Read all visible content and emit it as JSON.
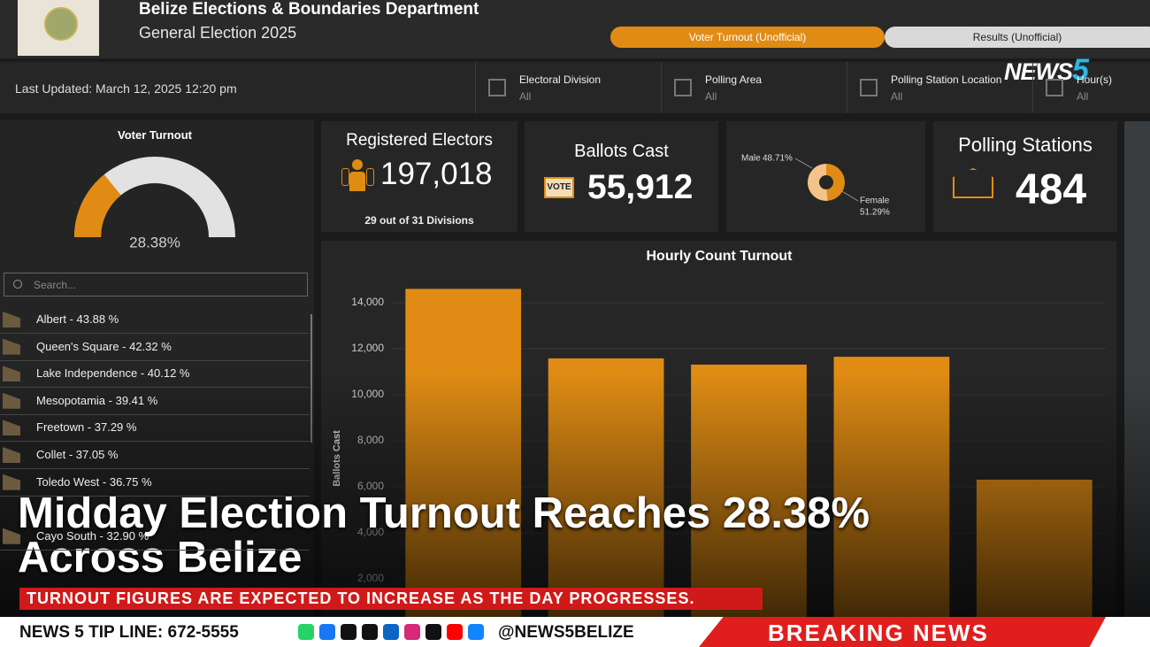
{
  "header": {
    "title": "Belize Elections & Boundaries Department",
    "subtitle": "General Election 2025"
  },
  "tabs": [
    "Voter Turnout (Unofficial)",
    "Results (Unofficial)"
  ],
  "last_updated": "Last Updated: March 12, 2025 12:20 pm",
  "filters": [
    {
      "label": "Electoral Division",
      "value": "All"
    },
    {
      "label": "Polling Area",
      "value": "All"
    },
    {
      "label": "Polling Station Location",
      "value": "All"
    },
    {
      "label": "Hour(s)",
      "value": "All"
    }
  ],
  "logo": {
    "text": "NEWS",
    "number": "5"
  },
  "search_placeholder": "Search...",
  "divisions": [
    "Albert - 43.88 %",
    "Queen's Square - 42.32 %",
    "Lake Independence - 40.12 %",
    "Mesopotamia - 39.41 %",
    "Freetown - 37.29 %",
    "Collet - 37.05 %",
    "Toledo West - 36.75 %",
    "Cayo South - 32.90 %"
  ],
  "cards": {
    "registered": {
      "title": "Registered Electors",
      "value": "197,018",
      "note": "29 out of 31 Divisions"
    },
    "ballots": {
      "title": "Ballots Cast",
      "value": "55,912",
      "icon": "VOTE"
    },
    "stations": {
      "title": "Polling Stations",
      "value": "484"
    }
  },
  "chart_data": [
    {
      "type": "gauge",
      "title": "Voter Turnout",
      "values": [
        28.38
      ],
      "value_labels": [
        "28.38%"
      ],
      "ylim": [
        0,
        100
      ],
      "color": "#e08c14"
    },
    {
      "type": "pie",
      "categories": [
        "Male",
        "Female"
      ],
      "values": [
        48.71,
        51.29
      ],
      "value_labels": [
        "48.71%",
        "51.29%"
      ],
      "colors": [
        "#e08c14",
        "#f5c28a"
      ]
    },
    {
      "type": "bar",
      "title": "Hourly Count Turnout",
      "y_label": "Ballots Cast",
      "categories": [
        null,
        null,
        null,
        null,
        null
      ],
      "values": [
        14600,
        11580,
        11310,
        11650,
        6310
      ],
      "color": "#e08c14",
      "ylim": [
        0,
        15000
      ],
      "yticks": [
        {
          "value": 2000,
          "label": "2,000"
        },
        {
          "value": 4000,
          "label": "4,000"
        },
        {
          "value": 6000,
          "label": "6,000"
        },
        {
          "value": 8000,
          "label": "8,000"
        },
        {
          "value": 10000,
          "label": "10,000"
        },
        {
          "value": 12000,
          "label": "12,000"
        },
        {
          "value": 14000,
          "label": "14,000"
        }
      ],
      "grid": true
    }
  ],
  "overlay": {
    "headline": [
      "Midday Election Turnout Reaches 28.38%",
      "Across Belize"
    ],
    "ticker": "TURNOUT FIGURES ARE EXPECTED TO INCREASE AS THE DAY PROGRESSES.",
    "tip_line": "NEWS 5 TIP LINE: 672-5555",
    "handle": "@NEWS5BELIZE",
    "banner": "BREAKING NEWS"
  }
}
